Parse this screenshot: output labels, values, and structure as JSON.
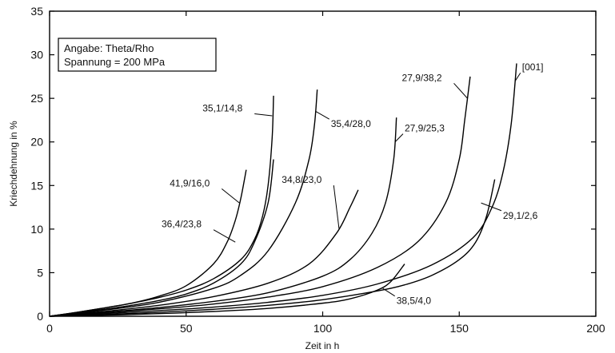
{
  "chart_data": {
    "type": "line",
    "xlabel": "Zeit in h",
    "ylabel": "Kriechdehnung in %",
    "xlim": [
      0,
      200
    ],
    "ylim": [
      0,
      35
    ],
    "x_ticks": [
      0,
      50,
      100,
      150,
      200
    ],
    "y_ticks": [
      0,
      5,
      10,
      15,
      20,
      25,
      30,
      35
    ],
    "grid": false,
    "legend_box": {
      "placement": "top-left",
      "lines": [
        "Angabe: Theta/Rho",
        "Spannung = 200 MPa"
      ]
    },
    "series": [
      {
        "name": "35,1/14,8",
        "x": [
          0,
          10,
          20,
          30,
          40,
          50,
          60,
          70,
          75,
          78,
          80,
          81.5,
          82
        ],
        "y": [
          0,
          0.45,
          0.95,
          1.5,
          2.15,
          3.0,
          4.3,
          6.5,
          8.8,
          11.5,
          15.0,
          20.5,
          25.3
        ]
      },
      {
        "name": "41,9/16,0",
        "x": [
          0,
          10,
          20,
          30,
          40,
          50,
          60,
          65,
          68,
          70,
          72
        ],
        "y": [
          0,
          0.45,
          0.95,
          1.5,
          2.3,
          3.5,
          6.0,
          8.5,
          11.0,
          13.5,
          16.8
        ]
      },
      {
        "name": "36,4/23,8",
        "x": [
          0,
          10,
          20,
          30,
          40,
          50,
          60,
          70,
          75,
          80,
          82
        ],
        "y": [
          0,
          0.4,
          0.8,
          1.25,
          1.8,
          2.55,
          3.8,
          6.0,
          8.5,
          13.0,
          18.0
        ]
      },
      {
        "name": "35,4/28,0",
        "x": [
          0,
          20,
          40,
          60,
          70,
          80,
          90,
          95,
          97,
          98
        ],
        "y": [
          0,
          0.7,
          1.6,
          3.2,
          4.7,
          7.5,
          13.0,
          18.0,
          22.0,
          26.0
        ]
      },
      {
        "name": "34,8/23,0",
        "x": [
          0,
          20,
          40,
          60,
          80,
          95,
          105,
          110,
          113
        ],
        "y": [
          0,
          0.55,
          1.25,
          2.25,
          3.8,
          6.0,
          9.5,
          12.5,
          14.5
        ]
      },
      {
        "name": "27,9/25,3",
        "x": [
          0,
          20,
          40,
          60,
          80,
          100,
          110,
          118,
          123,
          126,
          127
        ],
        "y": [
          0,
          0.45,
          1.0,
          1.7,
          2.7,
          4.6,
          6.5,
          9.5,
          13.0,
          18.0,
          22.8
        ]
      },
      {
        "name": "27,9/38,2",
        "x": [
          0,
          20,
          40,
          60,
          80,
          100,
          120,
          135,
          145,
          150,
          152,
          154
        ],
        "y": [
          0,
          0.4,
          0.85,
          1.4,
          2.2,
          3.4,
          5.6,
          8.6,
          13.0,
          18.0,
          22.5,
          27.5
        ]
      },
      {
        "name": "[001]",
        "x": [
          0,
          20,
          40,
          60,
          80,
          100,
          120,
          140,
          155,
          162,
          166,
          169,
          171
        ],
        "y": [
          0,
          0.3,
          0.65,
          1.05,
          1.6,
          2.4,
          3.7,
          5.9,
          9.0,
          12.5,
          16.5,
          22.0,
          29.0
        ]
      },
      {
        "name": "29,1/2,6",
        "x": [
          0,
          20,
          40,
          60,
          80,
          100,
          120,
          130,
          140,
          150,
          156,
          160,
          163
        ],
        "y": [
          0,
          0.2,
          0.45,
          0.8,
          1.25,
          1.9,
          2.9,
          3.6,
          4.7,
          6.5,
          8.5,
          11.5,
          15.7
        ]
      },
      {
        "name": "38,5/4,0",
        "x": [
          0,
          20,
          40,
          60,
          80,
          100,
          110,
          120,
          125,
          130
        ],
        "y": [
          0,
          0.12,
          0.3,
          0.55,
          0.9,
          1.5,
          2.0,
          3.0,
          4.0,
          6.0
        ]
      }
    ],
    "labels": [
      {
        "text": "35,1/14,8",
        "series": "35,1/14,8",
        "anchor_x": 56,
        "anchor_y": 23.5,
        "point_x": 81.5,
        "point_y": 23.0
      },
      {
        "text": "35,4/28,0",
        "series": "35,4/28,0",
        "anchor_x": 103,
        "anchor_y": 21.7,
        "point_x": 97.5,
        "point_y": 23.5
      },
      {
        "text": "27,9/25,3",
        "series": "27,9/25,3",
        "anchor_x": 130,
        "anchor_y": 21.2,
        "point_x": 126.5,
        "point_y": 20.0
      },
      {
        "text": "27,9/38,2",
        "series": "27,9/38,2",
        "anchor_x": 129,
        "anchor_y": 27.0,
        "point_x": 153,
        "point_y": 25.0
      },
      {
        "text": "[001]",
        "series": "[001]",
        "anchor_x": 173,
        "anchor_y": 28.2,
        "point_x": 170.5,
        "point_y": 27.0
      },
      {
        "text": "41,9/16,0",
        "series": "41,9/16,0",
        "anchor_x": 44,
        "anchor_y": 14.9,
        "point_x": 69.5,
        "point_y": 13.0
      },
      {
        "text": "34,8/23,0",
        "series": "34,8/23,0",
        "anchor_x": 85,
        "anchor_y": 15.3,
        "point_x": 106,
        "point_y": 10.0
      },
      {
        "text": "36,4/23,8",
        "series": "36,4/23,8",
        "anchor_x": 41,
        "anchor_y": 10.2,
        "point_x": 68,
        "point_y": 8.5
      },
      {
        "text": "29,1/2,6",
        "series": "29,1/2,6",
        "anchor_x": 166,
        "anchor_y": 11.2,
        "point_x": 158,
        "point_y": 13.0
      },
      {
        "text": "38,5/4,0",
        "series": "38,5/4,0",
        "anchor_x": 127,
        "anchor_y": 1.4,
        "point_x": 122,
        "point_y": 3.2
      }
    ]
  }
}
